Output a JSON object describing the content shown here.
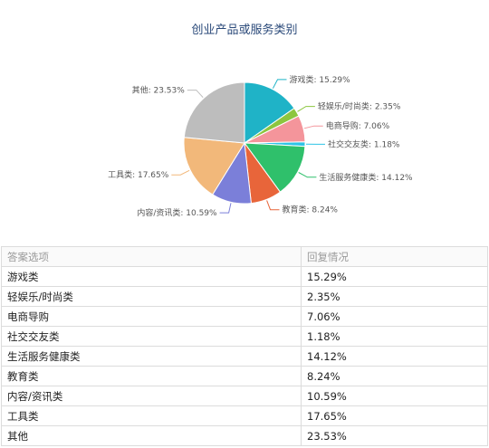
{
  "chart_data": {
    "type": "pie",
    "title": "创业产品或服务类别",
    "slices": [
      {
        "label": "游戏类",
        "value": 15.29,
        "label_text": "游戏类: 15.29%",
        "color": "#1fb3c7"
      },
      {
        "label": "轻娱乐/时尚类",
        "value": 2.35,
        "label_text": "轻娱乐/时尚类: 2.35%",
        "color": "#8cc63f"
      },
      {
        "label": "电商导购",
        "value": 7.06,
        "label_text": "电商导购: 7.06%",
        "color": "#f4959b"
      },
      {
        "label": "社交交友类",
        "value": 1.18,
        "label_text": "社交交友类: 1.18%",
        "color": "#2ec4e6"
      },
      {
        "label": "生活服务健康类",
        "value": 14.12,
        "label_text": "生活服务健康类: 14.12%",
        "color": "#2fc06b"
      },
      {
        "label": "教育类",
        "value": 8.24,
        "label_text": "教育类: 8.24%",
        "color": "#e8653a"
      },
      {
        "label": "内容/资讯类",
        "value": 10.59,
        "label_text": "内容/资讯类: 10.59%",
        "color": "#7b7fd9"
      },
      {
        "label": "工具类",
        "value": 17.65,
        "label_text": "工具类: 17.65%",
        "color": "#f2b87a"
      },
      {
        "label": "其他",
        "value": 23.53,
        "label_text": "其他: 23.53%",
        "color": "#bdbdbd"
      }
    ]
  },
  "table": {
    "headers": [
      "答案选项",
      "回复情况"
    ],
    "rows": [
      [
        "游戏类",
        "15.29%"
      ],
      [
        "轻娱乐/时尚类",
        "2.35%"
      ],
      [
        "电商导购",
        "7.06%"
      ],
      [
        "社交交友类",
        "1.18%"
      ],
      [
        "生活服务健康类",
        "14.12%"
      ],
      [
        "教育类",
        "8.24%"
      ],
      [
        "内容/资讯类",
        "10.59%"
      ],
      [
        "工具类",
        "17.65%"
      ],
      [
        "其他",
        "23.53%"
      ]
    ]
  }
}
